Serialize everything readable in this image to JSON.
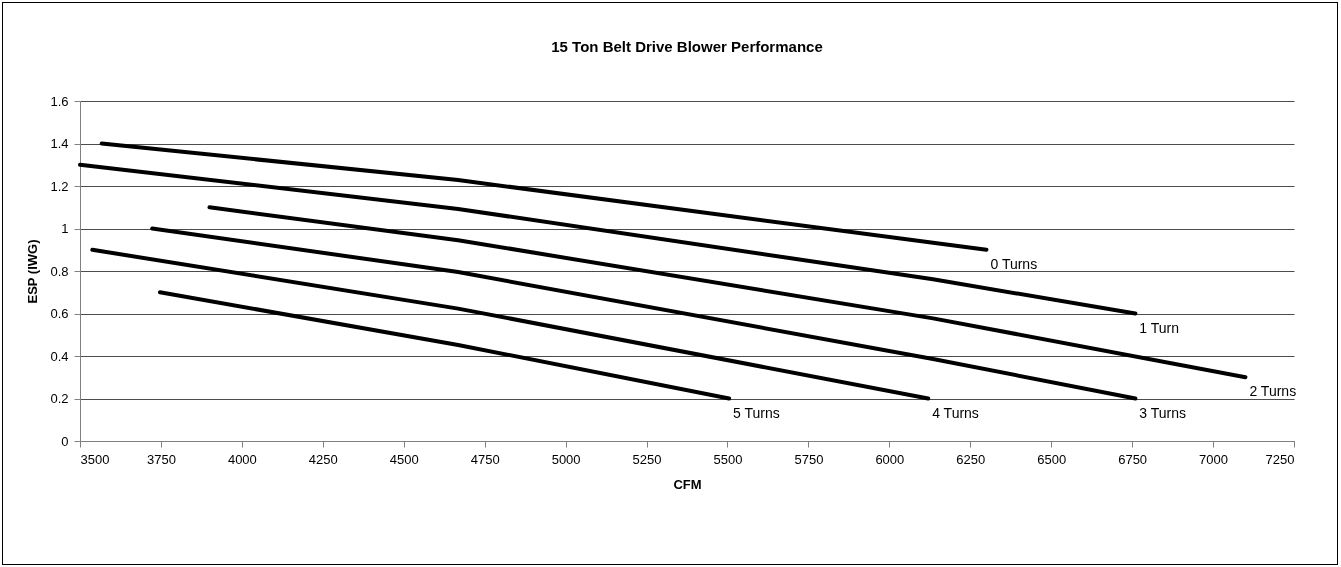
{
  "chart_data": {
    "type": "line",
    "title": "15 Ton Belt Drive Blower Performance",
    "xlabel": "CFM",
    "ylabel": "ESP (IWG)",
    "series": [
      {
        "name": "0 Turns",
        "color": "#000000",
        "x": [
          3567,
          4668,
          6135,
          6300
        ],
        "values": [
          1.4,
          1.228,
          0.933,
          0.9
        ]
      },
      {
        "name": "1 Turn",
        "color": "#000000",
        "x": [
          3500,
          4668,
          6135,
          6760
        ],
        "values": [
          1.3,
          1.092,
          0.761,
          0.6
        ]
      },
      {
        "name": "2 Turns",
        "color": "#000000",
        "x": [
          3900,
          4668,
          6135,
          7100
        ],
        "values": [
          1.1,
          0.945,
          0.577,
          0.3
        ]
      },
      {
        "name": "3 Turns",
        "color": "#000000",
        "x": [
          3723,
          4668,
          6135,
          6760
        ],
        "values": [
          1.0,
          0.795,
          0.386,
          0.2
        ]
      },
      {
        "name": "4 Turns",
        "color": "#000000",
        "x": [
          3538,
          4668,
          6120
        ],
        "values": [
          0.9,
          0.623,
          0.2
        ]
      },
      {
        "name": "5 Turns",
        "color": "#000000",
        "x": [
          3747,
          4668,
          5505
        ],
        "values": [
          0.7,
          0.452,
          0.2
        ]
      }
    ],
    "xlim": [
      3500,
      7250
    ],
    "xticks": [
      3500,
      3750,
      4000,
      4250,
      4500,
      4750,
      5000,
      5250,
      5500,
      5750,
      6000,
      6250,
      6500,
      6750,
      7000,
      7250
    ],
    "ylim": [
      0,
      1.6
    ],
    "yticks": [
      0,
      0.2,
      0.4,
      0.6,
      0.8,
      1,
      1.2,
      1.4,
      1.6
    ],
    "grid": "y",
    "legend": false,
    "marker": "none",
    "line_style": "solid"
  }
}
